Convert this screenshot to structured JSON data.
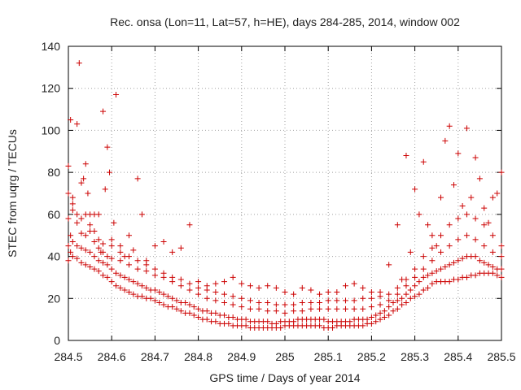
{
  "chart_data": {
    "type": "scatter",
    "title": "Rec. onsa (Lon=11, Lat=57, h=HE), days 284-285, 2014, window 002",
    "xlabel": "GPS time / Days of year 2014",
    "ylabel": "STEC from uqrg / TECUs",
    "xlim": [
      284.5,
      285.5
    ],
    "ylim": [
      0,
      140
    ],
    "xticks": [
      284.5,
      284.6,
      284.7,
      284.8,
      284.9,
      285,
      285.1,
      285.2,
      285.3,
      285.4,
      285.5
    ],
    "xtick_labels": [
      "284.5",
      "284.6",
      "284.7",
      "284.8",
      "284.9",
      "285",
      "285.1",
      "285.2",
      "285.3",
      "285.4",
      "285.5"
    ],
    "yticks": [
      0,
      20,
      40,
      60,
      80,
      100,
      120,
      140
    ],
    "ytick_labels": [
      "0",
      "20",
      "40",
      "60",
      "80",
      "100",
      "120",
      "140"
    ],
    "grid": true,
    "marker": "+",
    "color": "#cc0000",
    "series": [
      {
        "x": [
          284.5,
          284.505,
          284.51,
          284.52,
          284.53,
          284.54,
          284.55,
          284.56,
          284.57,
          284.58,
          284.59,
          284.6,
          284.61,
          284.62,
          284.63,
          284.64,
          284.65,
          284.66,
          284.67,
          284.68,
          284.69,
          284.7,
          284.71,
          284.72,
          284.73,
          284.74,
          284.75,
          284.76,
          284.77,
          284.78,
          284.79,
          284.8,
          284.81,
          284.82,
          284.83,
          284.84,
          284.85,
          284.86,
          284.87,
          284.88,
          284.89,
          284.9,
          284.91,
          284.92,
          284.93,
          284.94,
          284.95,
          284.96,
          284.97,
          284.98,
          284.99,
          285.0,
          285.01,
          285.02,
          285.03,
          285.04,
          285.05,
          285.06,
          285.07,
          285.08,
          285.09,
          285.1,
          285.11,
          285.12,
          285.13,
          285.14,
          285.15,
          285.16,
          285.17,
          285.18,
          285.19,
          285.2,
          285.21,
          285.22,
          285.23,
          285.24,
          285.25,
          285.26,
          285.27,
          285.28,
          285.29,
          285.3,
          285.31,
          285.32,
          285.33,
          285.34,
          285.35,
          285.36,
          285.37,
          285.38,
          285.39,
          285.4,
          285.41,
          285.42,
          285.43,
          285.44,
          285.45,
          285.46,
          285.47,
          285.48,
          285.49,
          285.5
        ],
        "y": [
          45,
          42,
          40,
          39,
          37,
          36,
          35,
          34,
          33,
          31,
          30,
          28,
          26,
          25,
          24,
          23,
          22,
          21,
          21,
          20,
          20,
          19,
          18,
          17,
          16,
          16,
          15,
          14,
          13,
          13,
          12,
          11,
          10,
          10,
          9,
          9,
          8,
          8,
          8,
          7,
          7,
          7,
          7,
          6,
          6,
          6,
          6,
          6,
          6,
          6,
          6,
          7,
          7,
          7,
          7,
          7,
          7,
          7,
          7,
          7,
          6,
          6,
          6,
          7,
          7,
          7,
          7,
          7,
          7,
          7,
          8,
          8,
          9,
          10,
          11,
          12,
          14,
          15,
          17,
          18,
          20,
          21,
          22,
          24,
          25,
          27,
          28,
          28,
          28,
          28,
          29,
          29,
          30,
          30,
          31,
          31,
          32,
          32,
          32,
          32,
          31,
          30
        ]
      },
      {
        "x": [
          284.5,
          284.505,
          284.51,
          284.52,
          284.53,
          284.54,
          284.55,
          284.56,
          284.57,
          284.58,
          284.59,
          284.6,
          284.61,
          284.62,
          284.63,
          284.64,
          284.65,
          284.66,
          284.67,
          284.68,
          284.69,
          284.7,
          284.71,
          284.72,
          284.73,
          284.74,
          284.75,
          284.76,
          284.77,
          284.78,
          284.79,
          284.8,
          284.81,
          284.82,
          284.83,
          284.84,
          284.85,
          284.86,
          284.87,
          284.88,
          284.89,
          284.9,
          284.91,
          284.92,
          284.93,
          284.94,
          284.95,
          284.96,
          284.97,
          284.98,
          284.99,
          285.0,
          285.01,
          285.02,
          285.03,
          285.04,
          285.05,
          285.06,
          285.07,
          285.08,
          285.09,
          285.1,
          285.11,
          285.12,
          285.13,
          285.14,
          285.15,
          285.16,
          285.17,
          285.18,
          285.19,
          285.2,
          285.21,
          285.22,
          285.23,
          285.24,
          285.25,
          285.26,
          285.27,
          285.28,
          285.29,
          285.3,
          285.31,
          285.32,
          285.33,
          285.34,
          285.35,
          285.36,
          285.37,
          285.38,
          285.39,
          285.4,
          285.41,
          285.42,
          285.43,
          285.44,
          285.45,
          285.46,
          285.47,
          285.48,
          285.49,
          285.5
        ],
        "y": [
          58,
          50,
          47,
          45,
          44,
          43,
          42,
          40,
          38,
          37,
          36,
          34,
          32,
          31,
          30,
          29,
          28,
          27,
          26,
          25,
          24,
          24,
          23,
          22,
          21,
          20,
          19,
          18,
          18,
          17,
          16,
          15,
          14,
          14,
          13,
          13,
          12,
          12,
          11,
          11,
          10,
          10,
          10,
          9,
          9,
          9,
          9,
          9,
          8,
          8,
          9,
          9,
          9,
          9,
          10,
          10,
          10,
          10,
          10,
          10,
          10,
          9,
          9,
          9,
          9,
          9,
          9,
          10,
          10,
          10,
          10,
          11,
          12,
          13,
          14,
          16,
          18,
          19,
          20,
          22,
          24,
          26,
          28,
          30,
          31,
          32,
          33,
          34,
          35,
          36,
          37,
          38,
          39,
          40,
          40,
          40,
          38,
          37,
          36,
          35,
          34,
          34
        ]
      },
      {
        "x": [
          284.5,
          284.51,
          284.52,
          284.53,
          284.54,
          284.55,
          284.56,
          284.57,
          284.58,
          284.59,
          284.6,
          284.62,
          284.64,
          284.66,
          284.68,
          284.7,
          284.72,
          284.74,
          284.76,
          284.78,
          284.8,
          284.82,
          284.84,
          284.86,
          284.88,
          284.9,
          284.92,
          284.94,
          284.96,
          284.98,
          285.0,
          285.02,
          285.04,
          285.06,
          285.08,
          285.1,
          285.12,
          285.14,
          285.16,
          285.18,
          285.2,
          285.22,
          285.24,
          285.26,
          285.28,
          285.3,
          285.32,
          285.34,
          285.36,
          285.38,
          285.4,
          285.42,
          285.44,
          285.46,
          285.48,
          285.5
        ],
        "y": [
          83,
          65,
          56,
          51,
          50,
          52,
          47,
          44,
          42,
          40,
          39,
          38,
          36,
          34,
          33,
          31,
          30,
          28,
          26,
          24,
          22,
          20,
          19,
          18,
          17,
          16,
          15,
          15,
          14,
          14,
          13,
          14,
          14,
          15,
          15,
          15,
          15,
          15,
          15,
          15,
          16,
          17,
          19,
          22,
          26,
          30,
          34,
          38,
          42,
          45,
          48,
          50,
          48,
          45,
          42,
          40
        ]
      },
      {
        "x": [
          284.5,
          284.51,
          284.52,
          284.53,
          284.54,
          284.55,
          284.56,
          284.57,
          284.58,
          284.6,
          284.62,
          284.64,
          284.66,
          284.68,
          284.7,
          284.72,
          284.74,
          284.76,
          284.78,
          284.8,
          284.82,
          284.84,
          284.86,
          284.88,
          284.9,
          284.92,
          284.94,
          284.96,
          284.98,
          285.0,
          285.02,
          285.04,
          285.06,
          285.08,
          285.1,
          285.12,
          285.14,
          285.16,
          285.18,
          285.2,
          285.22,
          285.24,
          285.26,
          285.28,
          285.3,
          285.32,
          285.34,
          285.36,
          285.38,
          285.4,
          285.42,
          285.44,
          285.46,
          285.48,
          285.5
        ],
        "y": [
          70,
          62,
          60,
          58,
          60,
          55,
          52,
          48,
          46,
          45,
          42,
          40,
          38,
          36,
          34,
          32,
          30,
          29,
          27,
          25,
          24,
          23,
          22,
          21,
          20,
          19,
          18,
          18,
          17,
          17,
          17,
          18,
          18,
          18,
          19,
          19,
          19,
          19,
          20,
          20,
          21,
          22,
          25,
          29,
          34,
          40,
          44,
          50,
          55,
          58,
          60,
          58,
          55,
          50,
          45
        ]
      },
      {
        "x": [
          284.5,
          284.505,
          284.51,
          284.52,
          284.525,
          284.53,
          284.535,
          284.54,
          284.545,
          284.55,
          284.56,
          284.57,
          284.575,
          284.58,
          284.585,
          284.59,
          284.595,
          284.6,
          284.605,
          284.61,
          284.62,
          284.63,
          284.64,
          284.65,
          284.66,
          284.67,
          284.68,
          284.7,
          284.72,
          284.74,
          284.76,
          284.78,
          284.8,
          284.82,
          284.84,
          284.86,
          284.88,
          284.9,
          284.92,
          284.94,
          284.96,
          284.98,
          285.0,
          285.02,
          285.04,
          285.06,
          285.08,
          285.1,
          285.12,
          285.14,
          285.16,
          285.18,
          285.2,
          285.22,
          285.24,
          285.26,
          285.27,
          285.28,
          285.29,
          285.3,
          285.31,
          285.32,
          285.33,
          285.34,
          285.35,
          285.36,
          285.37,
          285.38,
          285.39,
          285.4,
          285.41,
          285.42,
          285.43,
          285.44,
          285.45,
          285.46,
          285.47,
          285.48,
          285.49,
          285.5
        ],
        "y": [
          38,
          105,
          68,
          103,
          132,
          75,
          77,
          84,
          70,
          60,
          60,
          60,
          42,
          109,
          72,
          92,
          80,
          48,
          56,
          117,
          45,
          40,
          50,
          43,
          77,
          60,
          38,
          45,
          47,
          42,
          44,
          55,
          28,
          26,
          27,
          28,
          30,
          27,
          26,
          25,
          26,
          25,
          23,
          22,
          25,
          24,
          22,
          23,
          23,
          26,
          27,
          25,
          23,
          23,
          36,
          55,
          29,
          88,
          42,
          72,
          60,
          85,
          55,
          50,
          45,
          68,
          95,
          102,
          74,
          89,
          64,
          101,
          68,
          87,
          77,
          63,
          56,
          68,
          70,
          80
        ]
      }
    ]
  }
}
